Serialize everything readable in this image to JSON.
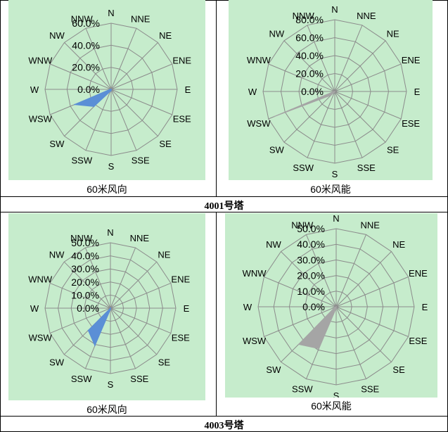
{
  "directions": [
    "N",
    "NNE",
    "NE",
    "ENE",
    "E",
    "ESE",
    "SE",
    "SSE",
    "S",
    "SSW",
    "SW",
    "WSW",
    "W",
    "WNW",
    "NW",
    "NNW"
  ],
  "colors": {
    "panel_bg": "#c6eccc",
    "grid": "#8c8c8c",
    "direction_series": "#5b8fd6",
    "energy_series": "#a5a5a5"
  },
  "towers": [
    {
      "label": "4001号塔"
    },
    {
      "label": "4003号塔"
    }
  ],
  "chart_data": [
    {
      "type": "radar",
      "caption": "60米风向",
      "radial_ticks": [
        "0.0%",
        "20.0%",
        "40.0%",
        "60.0%"
      ],
      "rmax": 60,
      "series": [
        {
          "values": [
            0,
            0,
            0,
            0,
            0,
            0,
            0,
            0,
            1,
            2,
            22,
            36,
            1,
            0,
            0,
            0
          ]
        }
      ]
    },
    {
      "type": "radar",
      "caption": "60米风能",
      "radial_ticks": [
        "0.0%",
        "20.0%",
        "40.0%",
        "60.0%",
        "80.0%"
      ],
      "rmax": 80,
      "series": [
        {
          "values": [
            0,
            0,
            0,
            0,
            0,
            0,
            0,
            0,
            0,
            1,
            6,
            73,
            1,
            0,
            0,
            0
          ]
        }
      ]
    },
    {
      "type": "radar",
      "caption": "60米风向",
      "radial_ticks": [
        "0.0%",
        "10.0%",
        "20.0%",
        "30.0%",
        "40.0%",
        "50.0%"
      ],
      "rmax": 50,
      "series": [
        {
          "values": [
            0,
            0,
            0,
            0,
            0,
            0,
            0,
            0,
            1,
            31,
            24,
            0,
            0,
            0,
            0,
            0
          ]
        }
      ]
    },
    {
      "type": "radar",
      "caption": "60米风能",
      "radial_ticks": [
        "0.0%",
        "10.0%",
        "20.0%",
        "30.0%",
        "40.0%",
        "50.0%"
      ],
      "rmax": 50,
      "series": [
        {
          "values": [
            0,
            0,
            0,
            0,
            0,
            0,
            0,
            0,
            1,
            29,
            34,
            1,
            0,
            0,
            0,
            0
          ]
        }
      ]
    }
  ]
}
